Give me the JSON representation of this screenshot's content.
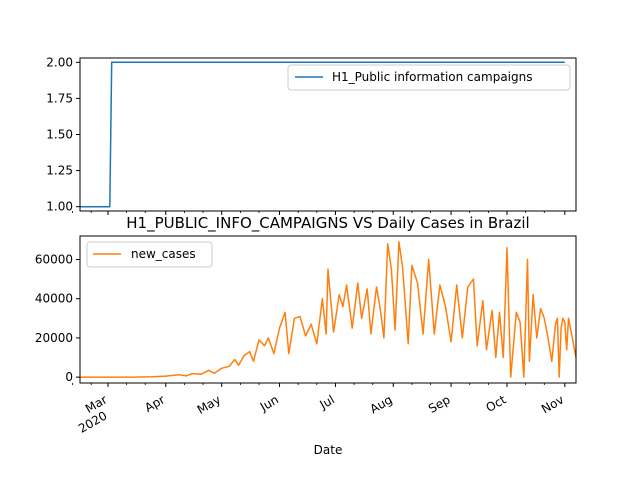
{
  "chart_data": [
    {
      "type": "line",
      "title": "",
      "xlabel": "",
      "ylabel": "",
      "ylim": [
        0.97,
        2.03
      ],
      "yticks": [
        "1.00",
        "1.25",
        "1.50",
        "1.75",
        "2.00"
      ],
      "legend": {
        "position": "upper-right"
      },
      "series": [
        {
          "name": "H1_Public information campaigns",
          "color": "#1f77b4",
          "points": [
            [
              "2020-02-15",
              1
            ],
            [
              "2020-03-02",
              1
            ],
            [
              "2020-03-03",
              2
            ],
            [
              "2020-11-01",
              2
            ]
          ]
        }
      ]
    },
    {
      "type": "line",
      "title": "H1_PUBLIC_INFO_CAMPAIGNS VS Daily Cases in Brazil",
      "xlabel": "Date",
      "ylabel": "",
      "ylim": [
        -3000,
        72000
      ],
      "yticks": [
        "0",
        "20000",
        "40000",
        "60000"
      ],
      "xticks": [
        {
          "date": "2020-03-01",
          "label": "Mar",
          "sub": "2020"
        },
        {
          "date": "2020-04-01",
          "label": "Apr",
          "sub": ""
        },
        {
          "date": "2020-05-01",
          "label": "May",
          "sub": ""
        },
        {
          "date": "2020-06-01",
          "label": "Jun",
          "sub": ""
        },
        {
          "date": "2020-07-01",
          "label": "Jul",
          "sub": ""
        },
        {
          "date": "2020-08-01",
          "label": "Aug",
          "sub": ""
        },
        {
          "date": "2020-09-01",
          "label": "Sep",
          "sub": ""
        },
        {
          "date": "2020-10-01",
          "label": "Oct",
          "sub": ""
        },
        {
          "date": "2020-11-01",
          "label": "Nov",
          "sub": ""
        }
      ],
      "legend": {
        "position": "upper-left"
      },
      "series": [
        {
          "name": "new_cases",
          "color": "#ff7f0e",
          "points": [
            [
              "2020-02-15",
              0
            ],
            [
              "2020-03-01",
              0
            ],
            [
              "2020-03-15",
              0
            ],
            [
              "2020-03-25",
              200
            ],
            [
              "2020-04-01",
              500
            ],
            [
              "2020-04-08",
              1200
            ],
            [
              "2020-04-12",
              600
            ],
            [
              "2020-04-15",
              1800
            ],
            [
              "2020-04-20",
              1500
            ],
            [
              "2020-04-24",
              3500
            ],
            [
              "2020-04-27",
              2000
            ],
            [
              "2020-05-01",
              4500
            ],
            [
              "2020-05-05",
              5500
            ],
            [
              "2020-05-08",
              9000
            ],
            [
              "2020-05-10",
              6000
            ],
            [
              "2020-05-13",
              11000
            ],
            [
              "2020-05-16",
              13000
            ],
            [
              "2020-05-18",
              8000
            ],
            [
              "2020-05-21",
              19000
            ],
            [
              "2020-05-24",
              16000
            ],
            [
              "2020-05-26",
              20000
            ],
            [
              "2020-05-29",
              12000
            ],
            [
              "2020-06-01",
              25000
            ],
            [
              "2020-06-04",
              33000
            ],
            [
              "2020-06-06",
              12000
            ],
            [
              "2020-06-09",
              30000
            ],
            [
              "2020-06-12",
              31000
            ],
            [
              "2020-06-15",
              21000
            ],
            [
              "2020-06-18",
              27000
            ],
            [
              "2020-06-21",
              17000
            ],
            [
              "2020-06-24",
              40000
            ],
            [
              "2020-06-26",
              22000
            ],
            [
              "2020-06-27",
              55000
            ],
            [
              "2020-06-30",
              23000
            ],
            [
              "2020-07-03",
              42000
            ],
            [
              "2020-07-05",
              36000
            ],
            [
              "2020-07-07",
              47000
            ],
            [
              "2020-07-10",
              25000
            ],
            [
              "2020-07-13",
              48000
            ],
            [
              "2020-07-15",
              30000
            ],
            [
              "2020-07-18",
              45000
            ],
            [
              "2020-07-20",
              22000
            ],
            [
              "2020-07-23",
              46000
            ],
            [
              "2020-07-25",
              35000
            ],
            [
              "2020-07-27",
              20000
            ],
            [
              "2020-07-29",
              68000
            ],
            [
              "2020-07-31",
              55000
            ],
            [
              "2020-08-02",
              24000
            ],
            [
              "2020-08-04",
              69000
            ],
            [
              "2020-08-06",
              56000
            ],
            [
              "2020-08-09",
              17000
            ],
            [
              "2020-08-11",
              57000
            ],
            [
              "2020-08-14",
              48000
            ],
            [
              "2020-08-17",
              22000
            ],
            [
              "2020-08-20",
              60000
            ],
            [
              "2020-08-23",
              22000
            ],
            [
              "2020-08-26",
              47000
            ],
            [
              "2020-08-29",
              36000
            ],
            [
              "2020-09-01",
              18000
            ],
            [
              "2020-09-04",
              47000
            ],
            [
              "2020-09-07",
              20000
            ],
            [
              "2020-09-10",
              46000
            ],
            [
              "2020-09-13",
              50000
            ],
            [
              "2020-09-15",
              16000
            ],
            [
              "2020-09-18",
              39000
            ],
            [
              "2020-09-20",
              14000
            ],
            [
              "2020-09-23",
              34000
            ],
            [
              "2020-09-25",
              10000
            ],
            [
              "2020-09-27",
              33000
            ],
            [
              "2020-09-29",
              10000
            ],
            [
              "2020-10-01",
              66000
            ],
            [
              "2020-10-03",
              0
            ],
            [
              "2020-10-06",
              33000
            ],
            [
              "2020-10-08",
              28000
            ],
            [
              "2020-10-10",
              0
            ],
            [
              "2020-10-12",
              60000
            ],
            [
              "2020-10-13",
              8000
            ],
            [
              "2020-10-15",
              42000
            ],
            [
              "2020-10-17",
              20000
            ],
            [
              "2020-10-19",
              35000
            ],
            [
              "2020-10-21",
              30000
            ],
            [
              "2020-10-23",
              20000
            ],
            [
              "2020-10-25",
              8000
            ],
            [
              "2020-10-27",
              27000
            ],
            [
              "2020-10-28",
              30000
            ],
            [
              "2020-10-29",
              0
            ],
            [
              "2020-10-30",
              25000
            ],
            [
              "2020-10-31",
              30000
            ],
            [
              "2020-11-01",
              28000
            ],
            [
              "2020-11-02",
              14000
            ],
            [
              "2020-11-03",
              30000
            ],
            [
              "2020-11-05",
              20000
            ],
            [
              "2020-11-07",
              10000
            ]
          ]
        }
      ]
    }
  ]
}
